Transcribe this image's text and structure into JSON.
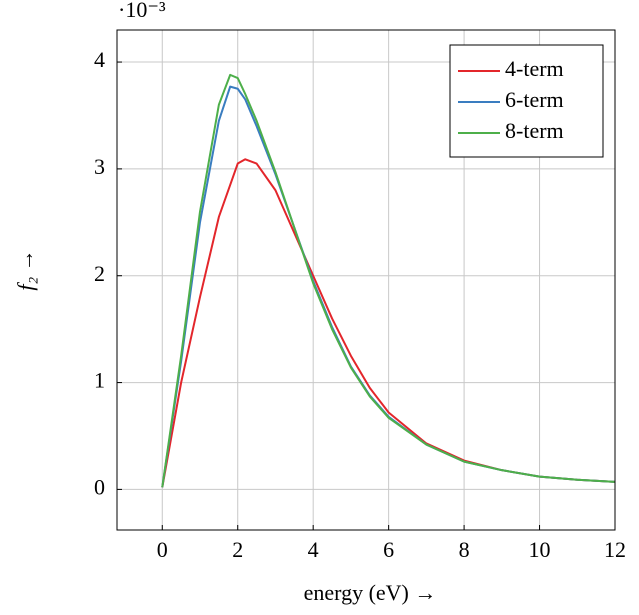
{
  "chart_data": {
    "type": "line",
    "xlabel": "energy (eV) →",
    "ylabel": "f₂ →",
    "y_multiplier": "·10⁻³",
    "x": [
      0,
      0.5,
      1,
      1.5,
      1.8,
      2,
      2.2,
      2.5,
      3,
      3.5,
      4,
      4.5,
      5,
      5.5,
      6,
      7,
      8,
      9,
      10,
      11,
      12
    ],
    "series": [
      {
        "name": "4-term",
        "color": "#e3262b",
        "values": [
          0.02,
          1.0,
          1.8,
          2.55,
          2.85,
          3.05,
          3.09,
          3.05,
          2.8,
          2.4,
          2.0,
          1.6,
          1.25,
          0.95,
          0.72,
          0.43,
          0.27,
          0.18,
          0.12,
          0.09,
          0.07
        ]
      },
      {
        "name": "6-term",
        "color": "#3a7dc0",
        "values": [
          0.02,
          1.2,
          2.5,
          3.45,
          3.77,
          3.75,
          3.65,
          3.4,
          2.95,
          2.45,
          1.95,
          1.52,
          1.15,
          0.88,
          0.68,
          0.42,
          0.26,
          0.18,
          0.12,
          0.09,
          0.07
        ]
      },
      {
        "name": "8-term",
        "color": "#4daf4a",
        "values": [
          0.02,
          1.25,
          2.6,
          3.6,
          3.88,
          3.85,
          3.7,
          3.45,
          2.97,
          2.45,
          1.93,
          1.5,
          1.14,
          0.87,
          0.67,
          0.42,
          0.26,
          0.18,
          0.12,
          0.09,
          0.07
        ]
      }
    ],
    "xlim": [
      -1.2,
      12
    ],
    "ylim": [
      -0.38,
      4.3
    ],
    "xticks": [
      0,
      2,
      4,
      6,
      8,
      10,
      12
    ],
    "yticks": [
      0,
      1,
      2,
      3,
      4
    ],
    "grid": true,
    "legend": "top-right"
  }
}
